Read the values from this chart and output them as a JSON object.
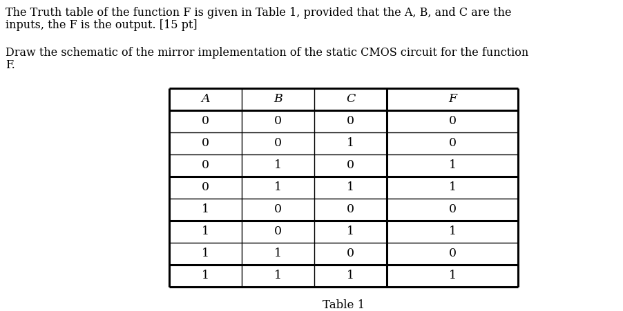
{
  "paragraph1_line1": "The Truth table of the function F is given in Table 1, provided that the A, B, and C are the",
  "paragraph1_line2": "inputs, the F is the output. [15 pt]",
  "paragraph2_line1": "Draw the schematic of the mirror implementation of the static CMOS circuit for the function",
  "paragraph2_line2": "F.",
  "table_headers": [
    "A",
    "B",
    "C",
    "F"
  ],
  "table_data": [
    [
      0,
      0,
      0,
      0
    ],
    [
      0,
      0,
      1,
      0
    ],
    [
      0,
      1,
      0,
      1
    ],
    [
      0,
      1,
      1,
      1
    ],
    [
      1,
      0,
      0,
      0
    ],
    [
      1,
      0,
      1,
      1
    ],
    [
      1,
      1,
      0,
      0
    ],
    [
      1,
      1,
      1,
      1
    ]
  ],
  "table_caption": "Table 1",
  "bg_color": "#ffffff",
  "text_color": "#000000",
  "thick_rows": [
    0,
    1,
    4,
    6,
    8,
    9
  ],
  "font_size_text": 11.5,
  "font_size_table": 12.5,
  "font_size_caption": 12
}
